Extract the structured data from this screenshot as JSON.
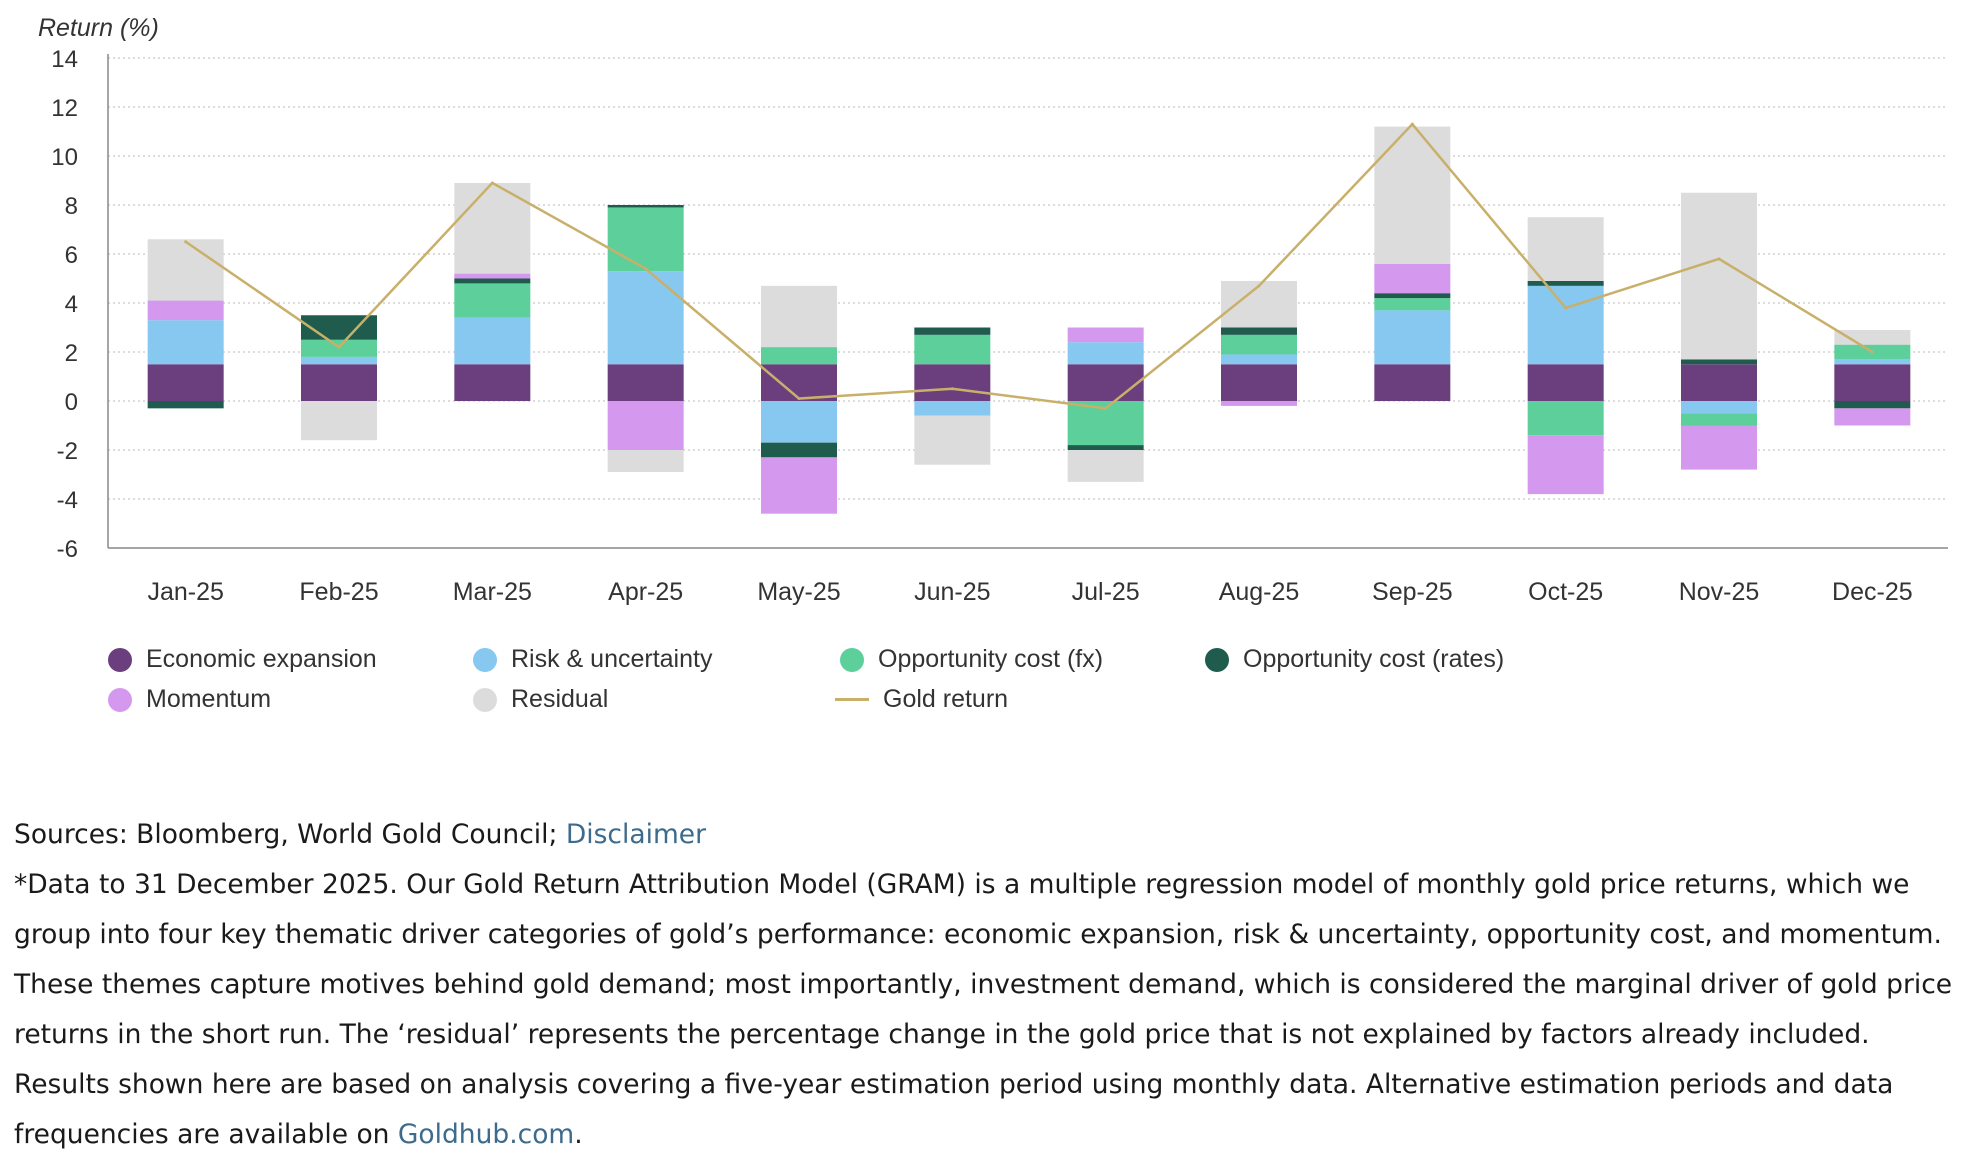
{
  "chart_data": {
    "type": "bar",
    "stacked": true,
    "ylabel": "Return (%)",
    "ylim": [
      -6,
      14
    ],
    "yticks": [
      -6,
      -4,
      -2,
      0,
      2,
      4,
      6,
      8,
      10,
      12,
      14
    ],
    "grid": true,
    "legend_position": "bottom",
    "categories": [
      "Jan-25",
      "Feb-25",
      "Mar-25",
      "Apr-25",
      "May-25",
      "Jun-25",
      "Jul-25",
      "Aug-25",
      "Sep-25",
      "Oct-25",
      "Nov-25",
      "Dec-25"
    ],
    "series": [
      {
        "name": "Economic expansion",
        "color": "#6b3f7d",
        "values": [
          1.5,
          1.5,
          1.5,
          1.5,
          1.5,
          1.5,
          1.5,
          1.5,
          1.5,
          1.5,
          1.5,
          1.5
        ]
      },
      {
        "name": "Risk & uncertainty",
        "color": "#86c8f0",
        "values": [
          1.8,
          0.3,
          1.9,
          3.8,
          -1.7,
          -0.6,
          0.9,
          0.4,
          2.2,
          3.2,
          -0.5,
          0.2
        ]
      },
      {
        "name": "Opportunity cost (fx)",
        "color": "#5ccf9a",
        "values": [
          0.0,
          0.7,
          1.4,
          2.6,
          0.7,
          1.2,
          -1.8,
          0.8,
          0.5,
          -1.4,
          -0.5,
          0.6
        ]
      },
      {
        "name": "Opportunity cost (rates)",
        "color": "#1f5c4e",
        "values": [
          -0.3,
          1.0,
          0.2,
          0.1,
          -0.6,
          0.3,
          -0.2,
          0.3,
          0.2,
          0.2,
          0.2,
          -0.3
        ]
      },
      {
        "name": "Momentum",
        "color": "#d598ef",
        "values": [
          0.8,
          0.0,
          0.2,
          -2.0,
          -2.3,
          0.0,
          0.6,
          -0.2,
          1.2,
          -2.4,
          -1.8,
          -0.7
        ]
      },
      {
        "name": "Residual",
        "color": "#dcdcdc",
        "values": [
          2.5,
          -1.6,
          3.7,
          -0.9,
          2.5,
          -2.0,
          -1.3,
          1.9,
          5.6,
          2.6,
          6.8,
          0.6
        ]
      }
    ],
    "line": {
      "name": "Gold return",
      "color": "#c9b06a",
      "values": [
        6.5,
        2.2,
        8.9,
        5.4,
        0.1,
        0.5,
        -0.3,
        4.7,
        11.3,
        3.8,
        5.8,
        2.0
      ]
    }
  },
  "notes": {
    "sources_prefix": "Sources: Bloomberg, World Gold Council; ",
    "disclaimer_link": "Disclaimer",
    "body": "*Data to 31 December 2025. Our Gold Return Attribution Model (GRAM) is a multiple regression model of monthly gold price returns, which we group into four key thematic driver categories of gold’s performance: economic expansion, risk & uncertainty, opportunity cost, and momentum. These themes capture motives behind gold demand; most importantly, investment demand, which is considered the marginal driver of gold price returns in the short run. The ‘residual’ represents the percentage change in the gold price that is not explained by factors already included. Results shown here are based on analysis covering a five-year estimation period using monthly data. Alternative estimation periods and data frequencies are available on ",
    "goldhub_link": "Goldhub.com",
    "body_end": "."
  }
}
